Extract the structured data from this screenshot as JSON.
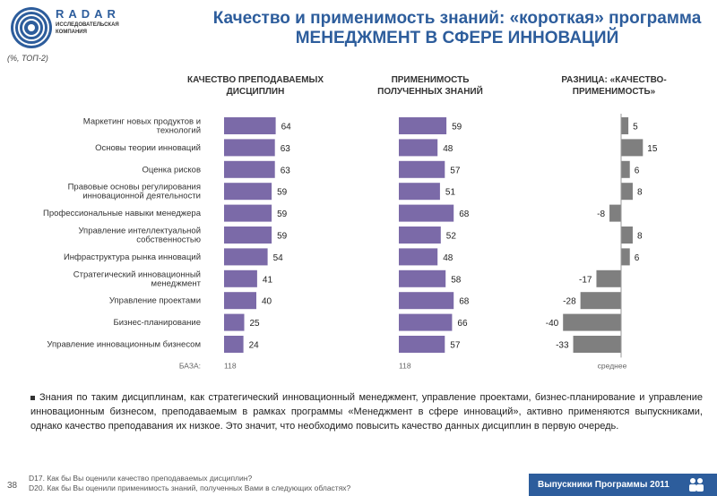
{
  "brand": {
    "name": "RADAR",
    "sub": "ИССЛЕДОВАТЕЛЬСКАЯ КОМПАНИЯ"
  },
  "title": "Качество и применимость знаний: «короткая» программа МЕНЕДЖМЕНТ В СФЕРЕ ИННОВАЦИЙ",
  "subnote": "(%, ТОП-2)",
  "headers": {
    "quality": "КАЧЕСТВО ПРЕПОДАВАЕМЫХ ДИСЦИПЛИН",
    "applicability": "ПРИМЕНИМОСТЬ ПОЛУЧЕННЫХ ЗНАНИЙ",
    "difference": "РАЗНИЦА: «КАЧЕСТВО-ПРИМЕНИМОСТЬ»"
  },
  "base": {
    "label": "БАЗА:",
    "quality": "118",
    "applicability": "118"
  },
  "average_label": "среднее",
  "colors": {
    "bar": "#7b6aa8",
    "diff_bar": "#7f7f7f",
    "brand": "#2d5d9c"
  },
  "chart_data": {
    "type": "bar",
    "categories": [
      "Маркетинг новых продуктов и технологий",
      "Основы теории инноваций",
      "Оценка рисков",
      "Правовые основы регулирования инновационной деятельности",
      "Профессиональные навыки менеджера",
      "Управление интеллектуальной собственностью",
      "Инфраструктура рынка инноваций",
      "Стратегический инновационный менеджмент",
      "Управление проектами",
      "Бизнес-планирование",
      "Управление инновационным бизнесом"
    ],
    "series": [
      {
        "name": "КАЧЕСТВО ПРЕПОДАВАЕМЫХ ДИСЦИПЛИН",
        "values": [
          64,
          63,
          63,
          59,
          59,
          59,
          54,
          41,
          40,
          25,
          24
        ]
      },
      {
        "name": "ПРИМЕНИМОСТЬ ПОЛУЧЕННЫХ ЗНАНИЙ",
        "values": [
          59,
          48,
          57,
          51,
          68,
          52,
          48,
          58,
          68,
          66,
          57
        ]
      },
      {
        "name": "РАЗНИЦА: «КАЧЕСТВО-ПРИМЕНИМОСТЬ»",
        "values": [
          5,
          15,
          6,
          8,
          -8,
          8,
          6,
          -17,
          -28,
          -40,
          -33
        ]
      }
    ]
  },
  "bullet": "Знания по таким дисциплинам, как стратегический инновационный менеджмент, управление проектами, бизнес-планирование и управление инновационным бизнесом, преподаваемым в рамках программы «Менеджмент в сфере инноваций», активно применяются выпускниками, однако качество преподавания их низкое. Это значит, что необходимо повысить качество данных дисциплин в первую очередь.",
  "questions": [
    "D17. Как бы Вы оценили качество преподаваемых дисциплин?",
    "D20. Как бы Вы оценили применимость знаний, полученных Вами в следующих областях?"
  ],
  "page_number": "38",
  "footer": "Выпускники Программы 2011"
}
